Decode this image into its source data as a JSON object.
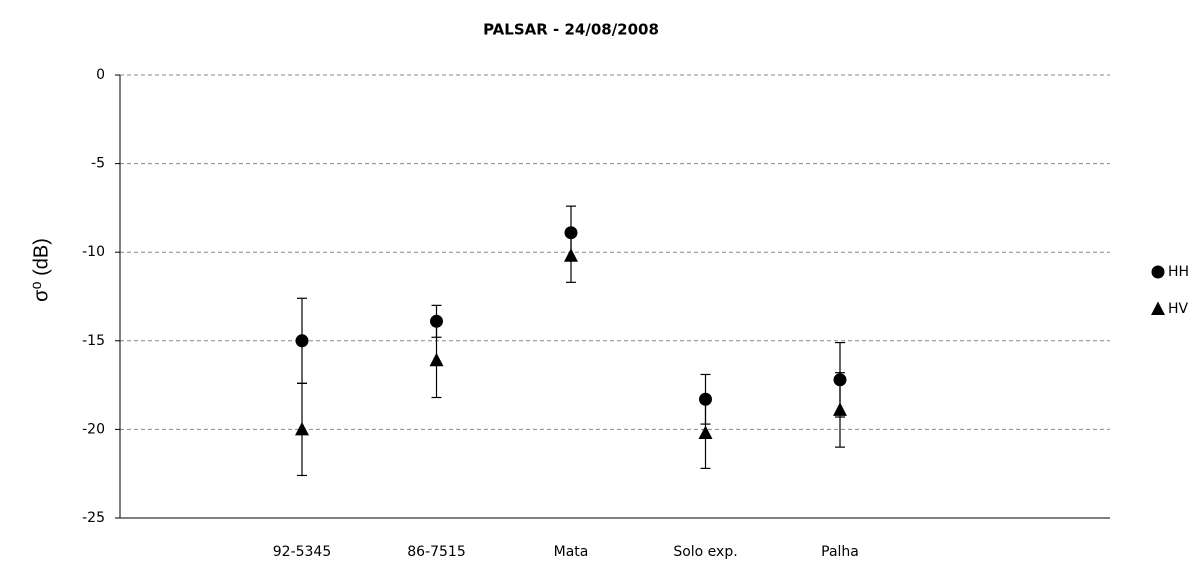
{
  "chart_data": {
    "type": "errorbar",
    "title": "PALSAR - 24/08/2008",
    "ylabel": "σ⁰ (dB)",
    "categories": [
      "92-5345",
      "86-7515",
      "Mata",
      "Solo exp.",
      "Palha"
    ],
    "series": [
      {
        "name": "HH",
        "color": "#000000",
        "marker": "circle",
        "values": [
          -15.0,
          -13.9,
          -8.9,
          -18.3,
          -17.2
        ],
        "errors": [
          2.4,
          0.9,
          1.5,
          1.4,
          2.1
        ]
      },
      {
        "name": "HV",
        "color": "#000000",
        "marker": "triangle",
        "values": [
          -20.0,
          -16.1,
          -10.2,
          -20.2,
          -18.9
        ],
        "errors": [
          2.6,
          2.1,
          1.5,
          2.0,
          2.1
        ]
      }
    ],
    "ylim": [
      -25,
      0
    ],
    "yticks": [
      0,
      -5,
      -10,
      -15,
      -20,
      -25
    ],
    "grid": true,
    "legend": "right"
  }
}
